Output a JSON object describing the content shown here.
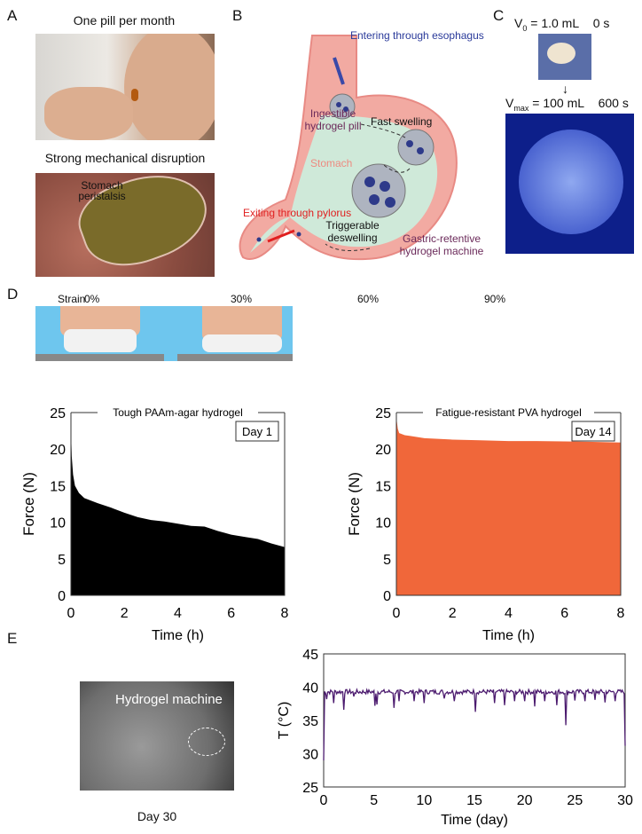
{
  "panels": {
    "A": "A",
    "B": "B",
    "C": "C",
    "D": "D",
    "E": "E"
  },
  "panelA": {
    "title_top": "One pill per month",
    "title_bottom": "Strong mechanical disruption",
    "annotation": "Stomach peristalsis"
  },
  "panelB": {
    "esophagus": "Entering through esophagus",
    "pill": "Ingestible hydrogel pill",
    "swelling": "Fast swelling",
    "stomach": "Stomach",
    "exit": "Exiting through pylorus",
    "deswelling": "Triggerable deswelling",
    "machine": "Gastric-retentive hydrogel machine"
  },
  "panelC": {
    "v0": "V",
    "v0_sub": "0",
    "v0_val": "= 1.0 mL",
    "t0": "0 s",
    "vmax": "V",
    "vmax_sub": "max",
    "vmax_val": "= 100 mL",
    "tmax": "600 s"
  },
  "panelD": {
    "strain_label": "Strain",
    "strains": [
      "0%",
      "30%",
      "60%",
      "90%"
    ]
  },
  "panelE": {
    "image_label": "Hydrogel machine",
    "day_label": "Day 30"
  },
  "colors": {
    "paam": "#000000",
    "pva": "#f0673a",
    "temp": "#4b1a6e",
    "stomach": "#f2aaa2",
    "gastric": "#cfe9d9"
  },
  "chart_data": [
    {
      "type": "area",
      "title": "Tough PAAm-agar hydrogel",
      "badge": "Day 1",
      "xlabel": "Time (h)",
      "ylabel": "Force (N)",
      "xlim": [
        0,
        8
      ],
      "ylim": [
        0,
        25
      ],
      "xticks": [
        "0",
        "2",
        "4",
        "6",
        "8"
      ],
      "yticks": [
        "0",
        "5",
        "10",
        "15",
        "20",
        "25"
      ],
      "x": [
        0,
        0.03,
        0.08,
        0.15,
        0.3,
        0.5,
        1,
        1.5,
        2,
        2.5,
        3,
        3.5,
        4,
        4.5,
        5,
        5.5,
        6,
        6.5,
        7,
        7.5,
        8
      ],
      "y": [
        23,
        19,
        16.5,
        15,
        14,
        13.3,
        12.6,
        12,
        11.3,
        10.7,
        10.3,
        10.1,
        9.8,
        9.5,
        9.4,
        8.8,
        8.3,
        8,
        7.7,
        7.1,
        6.6
      ]
    },
    {
      "type": "area",
      "title": "Fatigue-resistant PVA hydrogel",
      "badge": "Day 14",
      "xlabel": "Time (h)",
      "ylabel": "Force (N)",
      "xlim": [
        0,
        8
      ],
      "ylim": [
        0,
        25
      ],
      "xticks": [
        "0",
        "2",
        "4",
        "6",
        "8"
      ],
      "yticks": [
        "0",
        "5",
        "10",
        "15",
        "20",
        "25"
      ],
      "x": [
        0,
        0.05,
        0.1,
        0.3,
        0.5,
        1,
        2,
        3,
        4,
        5,
        6,
        7,
        8
      ],
      "y": [
        24.3,
        22.8,
        22.2,
        21.9,
        21.8,
        21.5,
        21.3,
        21.2,
        21.1,
        21.1,
        21.05,
        21,
        20.9
      ]
    },
    {
      "type": "line",
      "title": "",
      "xlabel": "Time (day)",
      "ylabel": "T (°C)",
      "xlim": [
        0,
        30
      ],
      "ylim": [
        25,
        45
      ],
      "xticks": [
        "0",
        "5",
        "10",
        "15",
        "20",
        "25",
        "30"
      ],
      "yticks": [
        "25",
        "30",
        "35",
        "40",
        "45"
      ],
      "baseline": 39.3,
      "dips": [
        [
          0,
          29
        ],
        [
          0.3,
          38.2
        ],
        [
          1,
          37.6
        ],
        [
          2,
          36.6
        ],
        [
          3,
          38.6
        ],
        [
          5.1,
          37.2
        ],
        [
          5.3,
          37.4
        ],
        [
          7,
          36.9
        ],
        [
          7.5,
          37.9
        ],
        [
          9,
          37.9
        ],
        [
          10,
          37.6
        ],
        [
          12,
          38.3
        ],
        [
          13,
          37.9
        ],
        [
          15.1,
          36.3
        ],
        [
          17,
          37.6
        ],
        [
          18,
          37.3
        ],
        [
          19,
          37.9
        ],
        [
          20,
          37.9
        ],
        [
          21,
          37.1
        ],
        [
          22,
          37.9
        ],
        [
          23.2,
          37.3
        ],
        [
          24.1,
          34.3
        ],
        [
          25,
          38
        ],
        [
          26,
          37.9
        ],
        [
          27,
          38.1
        ],
        [
          28,
          37.7
        ],
        [
          29,
          37.9
        ],
        [
          30,
          31.2
        ]
      ]
    }
  ]
}
